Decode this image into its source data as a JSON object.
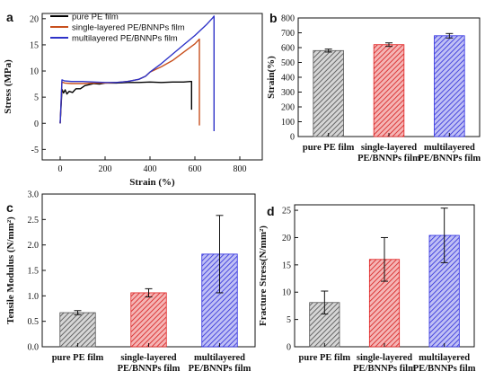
{
  "chart_data": [
    {
      "panel": "a",
      "type": "line",
      "xlabel": "Strain (%)",
      "ylabel": "Stress (MPa)",
      "xlim": [
        -80,
        900
      ],
      "ylim": [
        -7,
        21
      ],
      "xticks": [
        "0",
        "200",
        "400",
        "600",
        "800"
      ],
      "yticks": [
        "-5",
        "0",
        "5",
        "10",
        "15",
        "20"
      ],
      "legend_position": "top-left",
      "series": [
        {
          "name": "pure PE film",
          "color": "#000000",
          "x": [
            0,
            8,
            15,
            22,
            30,
            40,
            55,
            70,
            90,
            110,
            130,
            150,
            175,
            200,
            250,
            300,
            350,
            400,
            450,
            500,
            550,
            580,
            585,
            585
          ],
          "y": [
            0,
            6.5,
            5.8,
            6.4,
            5.6,
            6.1,
            5.9,
            6.6,
            6.6,
            7.2,
            7.4,
            7.6,
            7.5,
            7.7,
            7.7,
            7.8,
            7.8,
            7.9,
            7.8,
            7.9,
            7.9,
            8.0,
            8.0,
            2.6
          ]
        },
        {
          "name": "single-layered PE/BNNPs film",
          "color": "#C8501E",
          "x": [
            0,
            8,
            20,
            50,
            100,
            150,
            200,
            250,
            300,
            350,
            380,
            400,
            450,
            500,
            550,
            600,
            620,
            620
          ],
          "y": [
            0,
            7.9,
            7.7,
            7.6,
            7.6,
            7.7,
            7.7,
            7.8,
            8.0,
            8.4,
            9.0,
            9.8,
            10.8,
            12.0,
            13.6,
            15.2,
            16.1,
            -0.4
          ]
        },
        {
          "name": "multilayered PE/BNNPs film",
          "color": "#2E33C8",
          "x": [
            0,
            8,
            20,
            50,
            100,
            150,
            200,
            250,
            300,
            350,
            380,
            400,
            450,
            500,
            550,
            600,
            650,
            680,
            685,
            685
          ],
          "y": [
            0,
            8.3,
            8.1,
            8.0,
            8.0,
            7.9,
            7.8,
            7.8,
            8.0,
            8.4,
            9.0,
            9.8,
            11.4,
            13.2,
            15.0,
            16.8,
            18.8,
            20.2,
            20.5,
            -1.5
          ]
        }
      ]
    },
    {
      "panel": "b",
      "type": "bar",
      "ylabel": "Strain(%)",
      "ylim": [
        0,
        800
      ],
      "yticks": [
        "0",
        "100",
        "200",
        "300",
        "400",
        "500",
        "600",
        "700",
        "800"
      ],
      "categories": [
        [
          "pure PE film"
        ],
        [
          "single-layered",
          "PE/BNNPs film"
        ],
        [
          "multilayered",
          "PE/BNNPs film"
        ]
      ],
      "values": [
        580,
        620,
        680
      ],
      "errors": [
        10,
        12,
        15
      ],
      "colors": [
        "#555555",
        "#E02020",
        "#2A2AE0"
      ]
    },
    {
      "panel": "c",
      "type": "bar",
      "ylabel": "Tensile Modulus (N/mm²)",
      "ylim": [
        0,
        3.0
      ],
      "yticks": [
        "0.0",
        "0.5",
        "1.0",
        "1.5",
        "2.0",
        "2.5",
        "3.0"
      ],
      "categories": [
        [
          "pure PE film"
        ],
        [
          "single-layered",
          "PE/BNNPs film"
        ],
        [
          "multilayered",
          "PE/BNNPs film"
        ]
      ],
      "values": [
        0.67,
        1.06,
        1.82
      ],
      "errors": [
        0.04,
        0.08,
        0.76
      ],
      "colors": [
        "#555555",
        "#E02020",
        "#2A2AE0"
      ]
    },
    {
      "panel": "d",
      "type": "bar",
      "ylabel": "Fracture Stress(N/mm²)",
      "ylim": [
        0,
        26
      ],
      "yticks": [
        "0",
        "5",
        "10",
        "15",
        "20",
        "25"
      ],
      "categories": [
        [
          "pure PE film"
        ],
        [
          "single-layered",
          "PE/BNNPs film"
        ],
        [
          "multilayered",
          "PE/BNNPs film"
        ]
      ],
      "values": [
        8.1,
        16.0,
        20.4
      ],
      "errors": [
        2.1,
        4.0,
        5.0
      ],
      "colors": [
        "#555555",
        "#E02020",
        "#2A2AE0"
      ]
    }
  ]
}
